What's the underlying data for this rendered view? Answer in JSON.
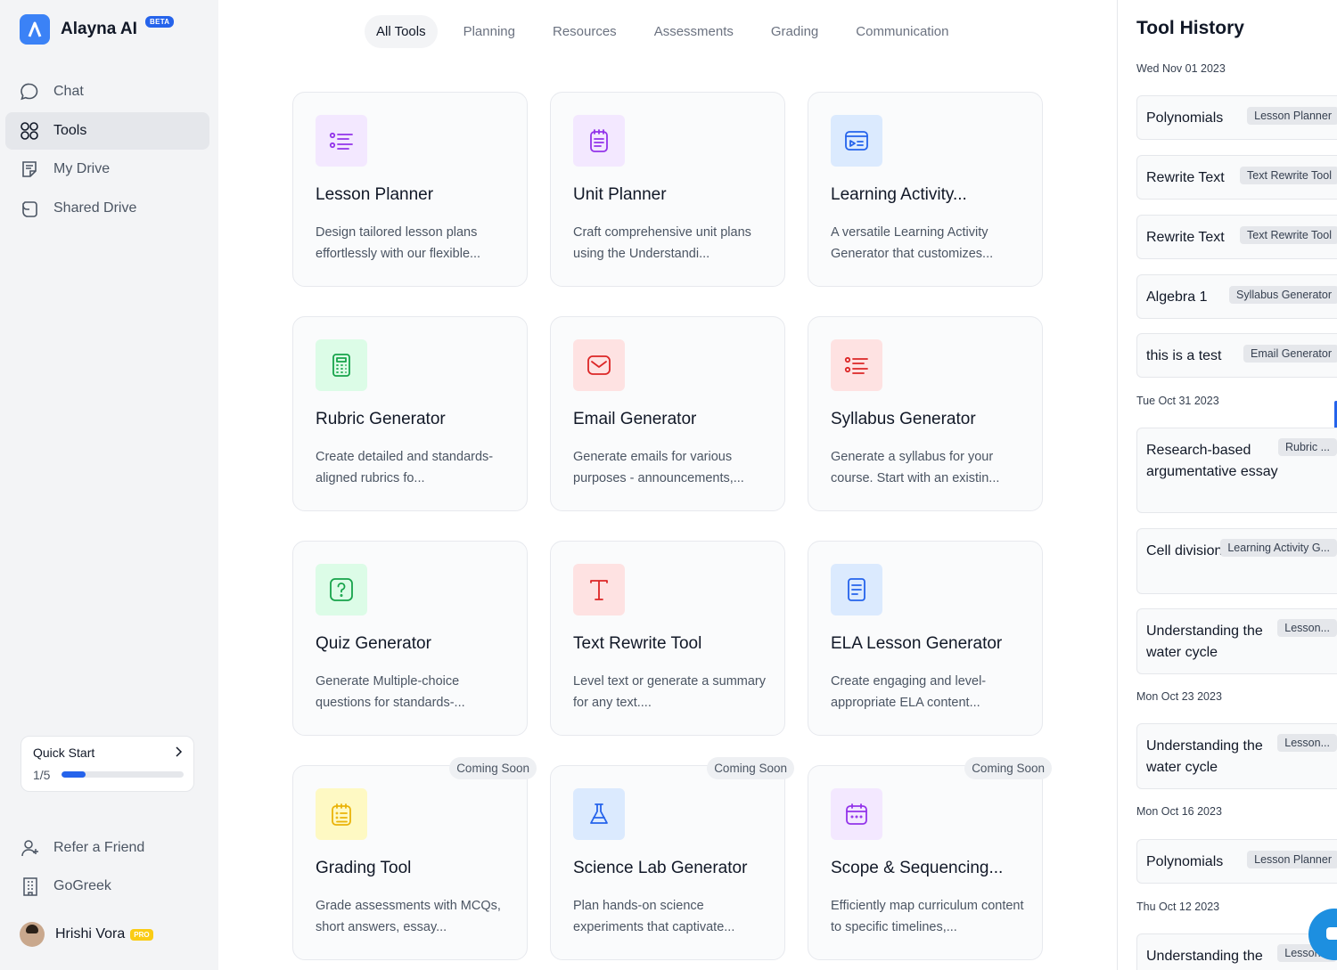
{
  "brand": {
    "name": "Alayna AI",
    "badge": "BETA"
  },
  "nav": [
    {
      "label": "Chat",
      "icon": "chat-icon",
      "active": false
    },
    {
      "label": "Tools",
      "icon": "grid-icon",
      "active": true
    },
    {
      "label": "My Drive",
      "icon": "drive-icon",
      "active": false
    },
    {
      "label": "Shared Drive",
      "icon": "shared-drive-icon",
      "active": false
    }
  ],
  "quick_start": {
    "title": "Quick Start",
    "count": "1/5",
    "progress_fraction": 0.2
  },
  "footer_links": [
    {
      "label": "Refer a Friend",
      "icon": "add-user-icon"
    },
    {
      "label": "GoGreek",
      "icon": "building-icon"
    }
  ],
  "user": {
    "name": "Hrishi Vora",
    "badge": "PRO"
  },
  "tabs": [
    "All Tools",
    "Planning",
    "Resources",
    "Assessments",
    "Grading",
    "Communication"
  ],
  "active_tab": "All Tools",
  "tools": [
    {
      "title": "Lesson Planner",
      "desc": "Design tailored lesson plans effortlessly with our flexible...",
      "icon": "list-icon",
      "color": "#9333ea",
      "bg": "#f3e8ff",
      "badge": ""
    },
    {
      "title": "Unit Planner",
      "desc": "Craft comprehensive unit plans using the Understandi...",
      "icon": "notepad-icon",
      "color": "#9333ea",
      "bg": "#f3e8ff",
      "badge": ""
    },
    {
      "title": "Learning Activity...",
      "desc": "A versatile Learning Activity Generator that customizes...",
      "icon": "media-card-icon",
      "color": "#2563eb",
      "bg": "#dbeafe",
      "badge": ""
    },
    {
      "title": "Rubric Generator",
      "desc": "Create detailed and standards-aligned rubrics fo...",
      "icon": "calculator-icon",
      "color": "#16a34a",
      "bg": "#dcfce7",
      "badge": ""
    },
    {
      "title": "Email Generator",
      "desc": "Generate emails for various purposes - announcements,...",
      "icon": "email-icon",
      "color": "#dc2626",
      "bg": "#fee2e2",
      "badge": ""
    },
    {
      "title": "Syllabus Generator",
      "desc": "Generate a syllabus for your course. Start with an existin...",
      "icon": "list-icon",
      "color": "#dc2626",
      "bg": "#fee2e2",
      "badge": ""
    },
    {
      "title": "Quiz Generator",
      "desc": "Generate Multiple-choice questions for standards-...",
      "icon": "question-icon",
      "color": "#16a34a",
      "bg": "#dcfce7",
      "badge": ""
    },
    {
      "title": "Text Rewrite Tool",
      "desc": "Level text or generate a summary for any text....",
      "icon": "text-icon",
      "color": "#dc2626",
      "bg": "#fee2e2",
      "badge": ""
    },
    {
      "title": "ELA Lesson Generator",
      "desc": "Create engaging and level-appropriate ELA content...",
      "icon": "book-icon",
      "color": "#2563eb",
      "bg": "#dbeafe",
      "badge": ""
    },
    {
      "title": "Grading Tool",
      "desc": "Grade assessments with MCQs, short answers, essay...",
      "icon": "clipboard-icon",
      "color": "#eab308",
      "bg": "#fef9c3",
      "badge": "Coming Soon"
    },
    {
      "title": "Science Lab Generator",
      "desc": "Plan hands-on science experiments that captivate...",
      "icon": "flask-icon",
      "color": "#2563eb",
      "bg": "#dbeafe",
      "badge": "Coming Soon"
    },
    {
      "title": "Scope & Sequencing...",
      "desc": "Efficiently map curriculum content to specific timelines,...",
      "icon": "calendar-icon",
      "color": "#9333ea",
      "bg": "#f3e8ff",
      "badge": "Coming Soon"
    }
  ],
  "history": {
    "title": "Tool History",
    "groups": [
      {
        "date": "Wed Nov 01 2023",
        "items": [
          {
            "name": "Polynomials",
            "tag": "Lesson Planner"
          },
          {
            "name": "Rewrite Text",
            "tag": "Text Rewrite Tool"
          },
          {
            "name": "Rewrite Text",
            "tag": "Text Rewrite Tool"
          },
          {
            "name": "Algebra 1",
            "tag": "Syllabus Generator"
          },
          {
            "name": "this is a test",
            "tag": "Email Generator"
          }
        ]
      },
      {
        "date": "Tue Oct 31 2023",
        "items": [
          {
            "name": "Research-based argumentative essay",
            "tag": "Rubric ..."
          },
          {
            "name": "Cell division",
            "tag": "Learning Activity G..."
          },
          {
            "name": "Understanding the water cycle",
            "tag": "Lesson..."
          }
        ]
      },
      {
        "date": "Mon Oct 23 2023",
        "items": [
          {
            "name": "Understanding the water cycle",
            "tag": "Lesson..."
          }
        ]
      },
      {
        "date": "Mon Oct 16 2023",
        "items": [
          {
            "name": "Polynomials",
            "tag": "Lesson Planner"
          }
        ]
      },
      {
        "date": "Thu Oct 12 2023",
        "items": [
          {
            "name": "Understanding the",
            "tag": "Lesson..."
          }
        ]
      }
    ]
  }
}
